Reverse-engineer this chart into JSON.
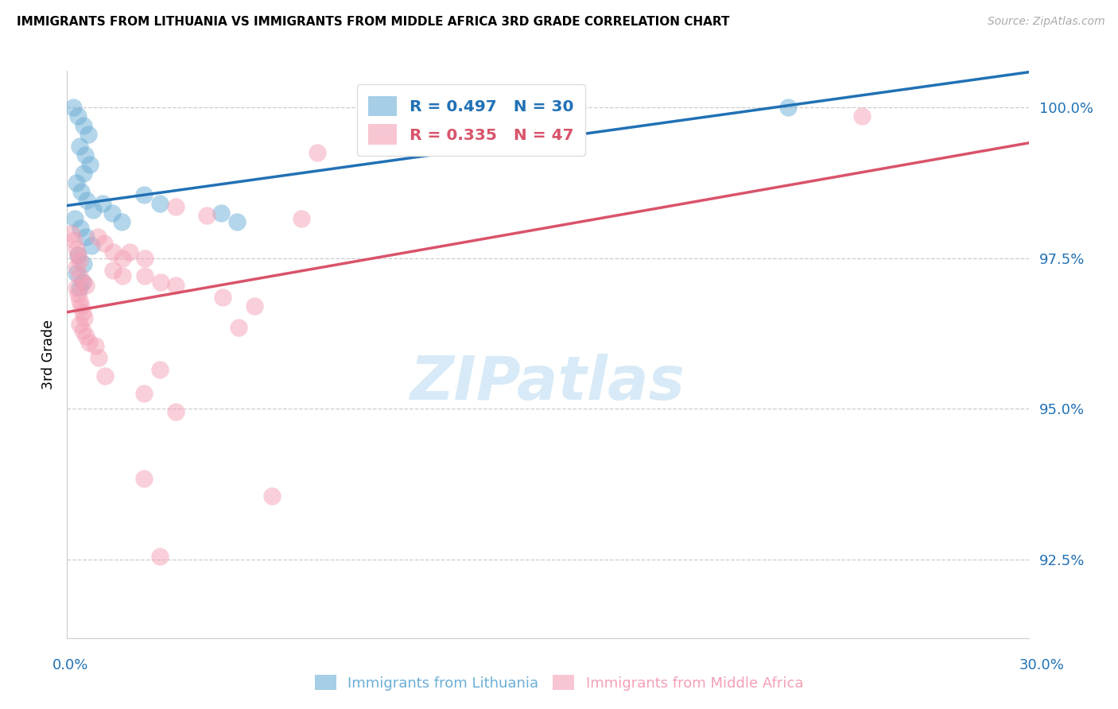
{
  "title": "IMMIGRANTS FROM LITHUANIA VS IMMIGRANTS FROM MIDDLE AFRICA 3RD GRADE CORRELATION CHART",
  "source": "Source: ZipAtlas.com",
  "ylabel": "3rd Grade",
  "y_ticks": [
    92.5,
    95.0,
    97.5,
    100.0
  ],
  "y_tick_labels": [
    "92.5%",
    "95.0%",
    "97.5%",
    "100.0%"
  ],
  "x_min": 0.0,
  "x_max": 30.0,
  "y_min": 91.2,
  "y_max": 100.6,
  "blue_color": "#6BAED6",
  "pink_color": "#F4A0B5",
  "blue_line_color": "#2171B5",
  "pink_line_color": "#D9536A",
  "R_blue": 0.497,
  "N_blue": 30,
  "R_pink": 0.335,
  "N_pink": 47,
  "legend_label_blue": "Immigrants from Lithuania",
  "legend_label_pink": "Immigrants from Middle Africa",
  "watermark_text": "ZIPatlas",
  "blue_scatter": [
    [
      0.2,
      100.0
    ],
    [
      0.35,
      99.85
    ],
    [
      0.5,
      99.7
    ],
    [
      0.65,
      99.55
    ],
    [
      0.4,
      99.35
    ],
    [
      0.55,
      99.2
    ],
    [
      0.7,
      99.05
    ],
    [
      0.5,
      98.9
    ],
    [
      0.3,
      98.75
    ],
    [
      0.45,
      98.6
    ],
    [
      0.6,
      98.45
    ],
    [
      0.8,
      98.3
    ],
    [
      0.25,
      98.15
    ],
    [
      0.42,
      98.0
    ],
    [
      0.58,
      97.85
    ],
    [
      0.75,
      97.7
    ],
    [
      0.35,
      97.55
    ],
    [
      0.52,
      97.4
    ],
    [
      0.28,
      97.25
    ],
    [
      0.48,
      97.1
    ],
    [
      1.1,
      98.4
    ],
    [
      1.4,
      98.25
    ],
    [
      1.7,
      98.1
    ],
    [
      2.4,
      98.55
    ],
    [
      2.9,
      98.4
    ],
    [
      4.8,
      98.25
    ],
    [
      5.3,
      98.1
    ],
    [
      9.8,
      99.85
    ],
    [
      22.5,
      100.0
    ],
    [
      0.38,
      97.0
    ]
  ],
  "pink_scatter": [
    [
      0.15,
      97.9
    ],
    [
      0.22,
      97.8
    ],
    [
      0.28,
      97.65
    ],
    [
      0.33,
      97.55
    ],
    [
      0.38,
      97.45
    ],
    [
      0.28,
      97.35
    ],
    [
      0.38,
      97.2
    ],
    [
      0.48,
      97.1
    ],
    [
      0.28,
      97.0
    ],
    [
      0.33,
      96.9
    ],
    [
      0.38,
      96.8
    ],
    [
      0.43,
      96.7
    ],
    [
      0.48,
      96.6
    ],
    [
      0.53,
      96.5
    ],
    [
      0.38,
      96.4
    ],
    [
      0.48,
      96.3
    ],
    [
      0.58,
      96.2
    ],
    [
      0.68,
      96.1
    ],
    [
      0.95,
      97.85
    ],
    [
      1.15,
      97.75
    ],
    [
      1.42,
      97.6
    ],
    [
      1.72,
      97.5
    ],
    [
      1.42,
      97.3
    ],
    [
      1.72,
      97.2
    ],
    [
      1.95,
      97.6
    ],
    [
      2.42,
      97.5
    ],
    [
      2.42,
      97.2
    ],
    [
      2.92,
      97.1
    ],
    [
      3.4,
      97.05
    ],
    [
      3.4,
      98.35
    ],
    [
      4.35,
      98.2
    ],
    [
      4.85,
      96.85
    ],
    [
      5.85,
      96.7
    ],
    [
      5.35,
      96.35
    ],
    [
      2.9,
      95.65
    ],
    [
      2.4,
      95.25
    ],
    [
      3.4,
      94.95
    ],
    [
      2.4,
      93.85
    ],
    [
      6.4,
      93.55
    ],
    [
      2.9,
      92.55
    ],
    [
      0.88,
      96.05
    ],
    [
      0.98,
      95.85
    ],
    [
      1.18,
      95.55
    ],
    [
      7.3,
      98.15
    ],
    [
      24.8,
      99.85
    ],
    [
      7.8,
      99.25
    ],
    [
      0.58,
      97.05
    ]
  ]
}
